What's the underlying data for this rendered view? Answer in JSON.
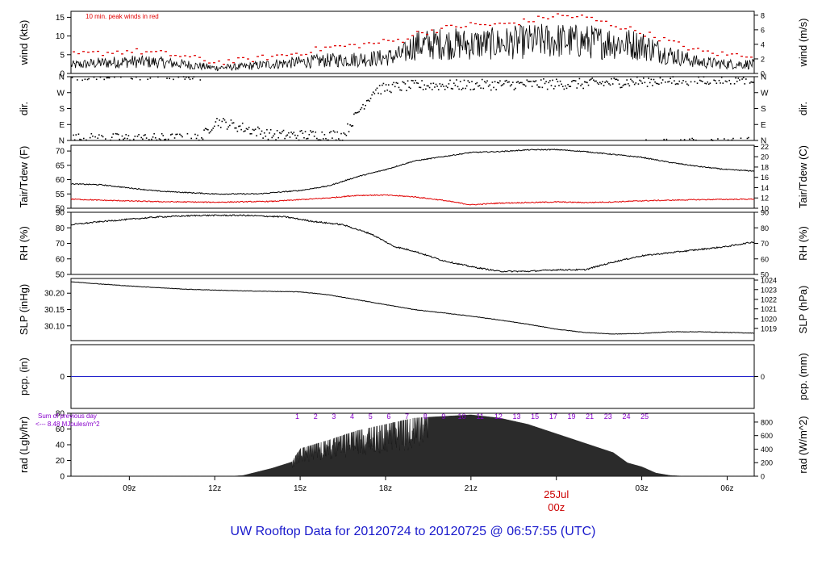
{
  "footer": {
    "title": "UW Rooftop Data for 20120724  to  20120725 @ 06:57:55  (UTC)"
  },
  "colors": {
    "frame": "#000000",
    "tair": "#000000",
    "tdew": "#e00000",
    "peak": "#e00000",
    "precip": "#2222cc",
    "annot": "#8800cc",
    "title": "#1a1acc"
  },
  "chart_data": {
    "type": "line",
    "x_axis": {
      "range_hours_utc": [
        6.95,
        30.95
      ],
      "ticks": [
        {
          "hour": 9,
          "label": "09z"
        },
        {
          "hour": 12,
          "label": "12z"
        },
        {
          "hour": 15,
          "label": "15z"
        },
        {
          "hour": 18,
          "label": "18z"
        },
        {
          "hour": 21,
          "label": "21z"
        },
        {
          "hour": 24,
          "label": "00z"
        },
        {
          "hour": 27,
          "label": "03z"
        },
        {
          "hour": 30,
          "label": "06z"
        }
      ],
      "date_marker": {
        "hour": 24,
        "date": "25Jul",
        "time": "00z"
      }
    },
    "panels": [
      {
        "id": "wind",
        "left_label": "wind (kts)",
        "right_label": "wind (m/s)",
        "left_ylim": [
          0,
          16.6
        ],
        "left_ticks": [
          0,
          5,
          10,
          15
        ],
        "right_ticks": [
          {
            "v": 0,
            "l": "0"
          },
          {
            "v": 3.889,
            "l": "2"
          },
          {
            "v": 7.777,
            "l": "4"
          },
          {
            "v": 11.666,
            "l": "6"
          },
          {
            "v": 15.554,
            "l": "8"
          }
        ],
        "annotation": "10 min. peak winds in red",
        "series": [
          {
            "role": "mean",
            "x": [
              6.95,
              8,
              9,
              10,
              11,
              12,
              13,
              14,
              15,
              16,
              17,
              18,
              18.6,
              19,
              20,
              21,
              22,
              23,
              24,
              25,
              26,
              27,
              28,
              29,
              30,
              30.95
            ],
            "y": [
              2.2,
              2.8,
              3.2,
              3.0,
              2.4,
              1.5,
              1.8,
              2.5,
              3.0,
              3.5,
              3.8,
              4.2,
              5.0,
              7.5,
              8.0,
              7.8,
              8.0,
              8.5,
              8.8,
              8.5,
              8.2,
              7.5,
              5.0,
              3.0,
              2.5,
              2.5
            ]
          },
          {
            "role": "peak",
            "x": [
              6.95,
              8,
              9,
              10,
              11,
              12,
              13,
              14,
              15,
              16,
              17,
              18,
              18.6,
              19,
              20,
              21,
              22,
              23,
              24,
              25,
              26,
              27,
              28,
              29,
              30,
              30.95
            ],
            "y": [
              5.0,
              5.5,
              6.0,
              5.5,
              4.5,
              3.0,
              3.5,
              4.5,
              5.5,
              7.0,
              7.5,
              8.5,
              9.0,
              10.5,
              12.0,
              13.0,
              13.0,
              14.0,
              15.5,
              15.0,
              13.0,
              11.0,
              8.5,
              6.0,
              5.0,
              5.0
            ]
          }
        ]
      },
      {
        "id": "dir",
        "left_label": "dir.",
        "right_label": "dir.",
        "categories": [
          "N",
          "E",
          "S",
          "W",
          "N"
        ],
        "ylim": [
          0,
          360
        ],
        "series": [
          {
            "role": "direction_deg",
            "x": [
              6.95,
              11.5,
              12.0,
              14.0,
              16.5,
              17.1,
              17.6,
              18.2,
              19.0,
              22.0,
              25.0,
              28.0,
              30.95
            ],
            "y": [
              10,
              10,
              110,
              30,
              30,
              180,
              285,
              300,
              310,
              315,
              320,
              340,
              350
            ]
          }
        ]
      },
      {
        "id": "temp",
        "left_label": "Tair/Tdew (F)",
        "right_label": "Tair/Tdew (C)",
        "left_ylim": [
          50,
          72
        ],
        "left_ticks": [
          50,
          55,
          60,
          65,
          70
        ],
        "right_ticks": [
          {
            "v": 50,
            "l": "10"
          },
          {
            "v": 53.6,
            "l": "12"
          },
          {
            "v": 57.2,
            "l": "14"
          },
          {
            "v": 60.8,
            "l": "16"
          },
          {
            "v": 64.4,
            "l": "18"
          },
          {
            "v": 68,
            "l": "20"
          },
          {
            "v": 71.6,
            "l": "22"
          }
        ],
        "series": [
          {
            "role": "Tair",
            "x": [
              6.95,
              8,
              10,
              12,
              13.5,
              15,
              16,
              17,
              18,
              19,
              20,
              21,
              22,
              23,
              24,
              25,
              26,
              27,
              28,
              29,
              30,
              30.95
            ],
            "y": [
              58.5,
              58.2,
              56.0,
              55.0,
              55.0,
              56.2,
              57.8,
              61.0,
              63.5,
              66.5,
              68.0,
              69.5,
              69.8,
              70.4,
              70.5,
              69.8,
              68.8,
              67.8,
              66.0,
              64.6,
              63.5,
              63.0
            ]
          },
          {
            "role": "Tdew",
            "x": [
              6.95,
              8,
              10,
              12,
              14,
              15,
              16,
              17,
              18,
              19,
              20,
              21,
              22,
              23,
              24,
              25,
              26,
              27,
              28,
              29,
              30,
              30.95
            ],
            "y": [
              53.2,
              52.8,
              52.3,
              52.1,
              52.4,
              53.0,
              53.6,
              54.5,
              54.6,
              54.0,
              52.8,
              51.2,
              51.8,
              52.0,
              52.2,
              52.0,
              52.2,
              52.6,
              52.8,
              53.0,
              53.1,
              53.2
            ]
          }
        ]
      },
      {
        "id": "rh",
        "left_label": "RH (%)",
        "right_label": "RH (%)",
        "left_ylim": [
          50,
          90
        ],
        "left_ticks": [
          50,
          60,
          70,
          80,
          90
        ],
        "right_ticks": [
          {
            "v": 50,
            "l": "50"
          },
          {
            "v": 60,
            "l": "60"
          },
          {
            "v": 70,
            "l": "70"
          },
          {
            "v": 80,
            "l": "80"
          },
          {
            "v": 90,
            "l": "90"
          }
        ],
        "series": [
          {
            "role": "RH",
            "x": [
              6.95,
              8,
              10,
              11.5,
              13,
              14.5,
              15.5,
              16.5,
              17.5,
              18.3,
              19,
              20,
              21,
              22,
              23,
              24,
              25,
              26,
              27,
              28,
              29,
              30,
              30.95
            ],
            "y": [
              82,
              84,
              87,
              88,
              88,
              87,
              84,
              82,
              76,
              68,
              65,
              59,
              55,
              52,
              52,
              53,
              53,
              58,
              62,
              64,
              66,
              68,
              71
            ]
          }
        ]
      },
      {
        "id": "slp",
        "left_label": "SLP (inHg)",
        "right_label": "SLP (hPa)",
        "left_ylim": [
          30.055,
          30.245
        ],
        "left_ticks": [
          30.1,
          30.15,
          30.2
        ],
        "tick_labels": [
          "30.10",
          "30.15",
          "30.20"
        ],
        "right_ticks": [
          {
            "v": 30.0925,
            "l": "1019"
          },
          {
            "v": 30.122,
            "l": "1020"
          },
          {
            "v": 30.152,
            "l": "1021"
          },
          {
            "v": 30.181,
            "l": "1022"
          },
          {
            "v": 30.211,
            "l": "1023"
          },
          {
            "v": 30.24,
            "l": "1024"
          }
        ],
        "series": [
          {
            "role": "SLP",
            "x": [
              6.95,
              8,
              9,
              11,
              13,
              15,
              16,
              17,
              18,
              19,
              20,
              21,
              22,
              23,
              24,
              25,
              26,
              27,
              28,
              29,
              30,
              30.95
            ],
            "y": [
              30.235,
              30.228,
              30.222,
              30.212,
              30.207,
              30.204,
              30.195,
              30.18,
              30.165,
              30.15,
              30.14,
              30.13,
              30.118,
              30.105,
              30.09,
              30.08,
              30.075,
              30.077,
              30.082,
              30.082,
              30.08,
              30.078
            ]
          }
        ]
      },
      {
        "id": "pcp",
        "left_label": "pcp. (in)",
        "right_label": "pcp. (mm)",
        "left_ylim": [
          -1,
          1
        ],
        "left_ticks": [
          0
        ],
        "right_ticks": [
          {
            "v": 0,
            "l": "0"
          }
        ],
        "series": [
          {
            "role": "precip",
            "x": [
              6.95,
              30.95
            ],
            "y": [
              0,
              0
            ]
          }
        ]
      },
      {
        "id": "rad",
        "left_label": "rad (Lgly/hr)",
        "right_label": "rad (W/m^2)",
        "left_ylim": [
          0,
          80
        ],
        "left_ticks": [
          0,
          20,
          40,
          60,
          80
        ],
        "right_ticks": [
          {
            "v": 0,
            "l": "0"
          },
          {
            "v": 17.2,
            "l": "200"
          },
          {
            "v": 34.4,
            "l": "400"
          },
          {
            "v": 51.6,
            "l": "600"
          },
          {
            "v": 68.8,
            "l": "800"
          }
        ],
        "annotation_line1": "Sum of previous day",
        "annotation_line2": "<--- 8.48 MJoules/m^2",
        "top_markers": [
          "1",
          "2",
          "3",
          "4",
          "5",
          "6",
          "7",
          "8",
          "9",
          "10",
          "11",
          "12",
          "13",
          "15",
          "17",
          "19",
          "21",
          "23",
          "24",
          "25"
        ],
        "series": [
          {
            "role": "radiation",
            "x": [
              6.95,
              12.6,
              13.0,
              14.0,
              14.7,
              15.0,
              16.0,
              17.0,
              18.0,
              19.0,
              20.0,
              21.0,
              22.0,
              23.0,
              24.0,
              25.0,
              26.0,
              26.5,
              27.0,
              27.5,
              28.0,
              28.5,
              30.95
            ],
            "y": [
              0,
              0,
              1,
              10,
              18,
              35,
              46,
              58,
              66,
              74,
              76,
              78,
              74,
              66,
              54,
              42,
              30,
              17,
              12,
              4,
              1,
              0,
              0
            ]
          }
        ]
      }
    ]
  }
}
